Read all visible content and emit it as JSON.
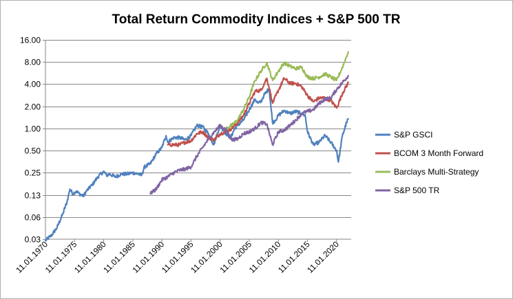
{
  "chart_data": {
    "type": "line",
    "title": "Total Return Commodity Indices + S&P 500 TR",
    "xlabel": "",
    "ylabel": "",
    "y_scale": "log2",
    "ylim": [
      0.03,
      16
    ],
    "xlim": [
      1970,
      2022.5
    ],
    "y_ticks": [
      {
        "value": 0.03125,
        "label": "0.03"
      },
      {
        "value": 0.0625,
        "label": "0.06"
      },
      {
        "value": 0.125,
        "label": "0.13"
      },
      {
        "value": 0.25,
        "label": "0.25"
      },
      {
        "value": 0.5,
        "label": "0.50"
      },
      {
        "value": 1,
        "label": "1.00"
      },
      {
        "value": 2,
        "label": "2.00"
      },
      {
        "value": 4,
        "label": "4.00"
      },
      {
        "value": 8,
        "label": "8.00"
      },
      {
        "value": 16,
        "label": "16.00"
      }
    ],
    "x_ticks": [
      {
        "value": 1970,
        "label": "11.01.1970"
      },
      {
        "value": 1975,
        "label": "11.01.1975"
      },
      {
        "value": 1980,
        "label": "11.01.1980"
      },
      {
        "value": 1985,
        "label": "11.01.1985"
      },
      {
        "value": 1990,
        "label": "11.01.1990"
      },
      {
        "value": 1995,
        "label": "11.01.1995"
      },
      {
        "value": 2000,
        "label": "11.01.2000"
      },
      {
        "value": 2005,
        "label": "11.01.2005"
      },
      {
        "value": 2010,
        "label": "11.01.2010"
      },
      {
        "value": 2015,
        "label": "11.01.2015"
      },
      {
        "value": 2020,
        "label": "11.01.2020"
      }
    ],
    "legend_position": "right",
    "series": [
      {
        "name": "S&P GSCI",
        "color": "#4f81bd",
        "points": [
          [
            1970,
            0.03
          ],
          [
            1971,
            0.035
          ],
          [
            1972,
            0.045
          ],
          [
            1973,
            0.07
          ],
          [
            1973.7,
            0.1
          ],
          [
            1974.2,
            0.15
          ],
          [
            1974.7,
            0.13
          ],
          [
            1975.3,
            0.14
          ],
          [
            1975.8,
            0.13
          ],
          [
            1976.5,
            0.12
          ],
          [
            1977,
            0.14
          ],
          [
            1978,
            0.17
          ],
          [
            1979,
            0.22
          ],
          [
            1980,
            0.26
          ],
          [
            1980.5,
            0.23
          ],
          [
            1981,
            0.24
          ],
          [
            1982,
            0.22
          ],
          [
            1983,
            0.24
          ],
          [
            1984,
            0.24
          ],
          [
            1985,
            0.25
          ],
          [
            1986,
            0.24
          ],
          [
            1986.5,
            0.23
          ],
          [
            1987,
            0.3
          ],
          [
            1988,
            0.33
          ],
          [
            1989,
            0.45
          ],
          [
            1990,
            0.55
          ],
          [
            1990.7,
            0.8
          ],
          [
            1991,
            0.65
          ],
          [
            1992,
            0.75
          ],
          [
            1993,
            0.75
          ],
          [
            1994,
            0.7
          ],
          [
            1995,
            0.8
          ],
          [
            1996,
            1.1
          ],
          [
            1997,
            1.05
          ],
          [
            1998,
            0.85
          ],
          [
            1998.9,
            0.6
          ],
          [
            1999.5,
            0.85
          ],
          [
            2000,
            1.1
          ],
          [
            2001,
            0.85
          ],
          [
            2001.8,
            0.75
          ],
          [
            2002.5,
            1.0
          ],
          [
            2003,
            1.1
          ],
          [
            2004,
            1.3
          ],
          [
            2005,
            1.8
          ],
          [
            2006,
            2.5
          ],
          [
            2006.5,
            2.2
          ],
          [
            2007,
            2.3
          ],
          [
            2007.5,
            2.8
          ],
          [
            2008.4,
            3.5
          ],
          [
            2009,
            1.2
          ],
          [
            2009.5,
            1.3
          ],
          [
            2010,
            1.5
          ],
          [
            2011,
            1.75
          ],
          [
            2012,
            1.6
          ],
          [
            2013,
            1.7
          ],
          [
            2014,
            1.6
          ],
          [
            2014.6,
            1.5
          ],
          [
            2015,
            0.9
          ],
          [
            2016,
            0.6
          ],
          [
            2017,
            0.65
          ],
          [
            2018,
            0.8
          ],
          [
            2019,
            0.65
          ],
          [
            2020,
            0.5
          ],
          [
            2020.3,
            0.35
          ],
          [
            2021,
            0.8
          ],
          [
            2021.7,
            1.2
          ],
          [
            2022,
            1.35
          ]
        ]
      },
      {
        "name": "BCOM 3 Month Forward",
        "color": "#c0504d",
        "points": [
          [
            1991,
            0.6
          ],
          [
            1992,
            0.6
          ],
          [
            1993,
            0.6
          ],
          [
            1994,
            0.65
          ],
          [
            1995,
            0.68
          ],
          [
            1996,
            0.85
          ],
          [
            1997,
            0.9
          ],
          [
            1998,
            0.75
          ],
          [
            1999,
            0.7
          ],
          [
            2000,
            0.85
          ],
          [
            2001,
            0.9
          ],
          [
            2002,
            1.0
          ],
          [
            2003,
            1.2
          ],
          [
            2004,
            1.5
          ],
          [
            2005,
            2.2
          ],
          [
            2006,
            3.2
          ],
          [
            2007,
            3.3
          ],
          [
            2008,
            4.8
          ],
          [
            2008.5,
            3.4
          ],
          [
            2009,
            2.2
          ],
          [
            2010,
            3.3
          ],
          [
            2011,
            4.8
          ],
          [
            2012,
            4.1
          ],
          [
            2013,
            4.1
          ],
          [
            2014,
            3.7
          ],
          [
            2015,
            2.8
          ],
          [
            2016,
            2.3
          ],
          [
            2017,
            2.6
          ],
          [
            2018,
            2.6
          ],
          [
            2019,
            2.4
          ],
          [
            2020,
            1.9
          ],
          [
            2021,
            3.0
          ],
          [
            2022,
            4.2
          ]
        ]
      },
      {
        "name": "Barclays Multi-Strategy",
        "color": "#9bbb59",
        "points": [
          [
            2001,
            1.0
          ],
          [
            2002,
            1.1
          ],
          [
            2003,
            1.3
          ],
          [
            2004,
            1.8
          ],
          [
            2005,
            2.7
          ],
          [
            2006,
            4.5
          ],
          [
            2007,
            6.0
          ],
          [
            2008,
            7.8
          ],
          [
            2008.5,
            6.0
          ],
          [
            2009,
            4.5
          ],
          [
            2010,
            6.0
          ],
          [
            2011,
            7.8
          ],
          [
            2012,
            7.0
          ],
          [
            2013,
            6.5
          ],
          [
            2014,
            6.8
          ],
          [
            2015,
            5.0
          ],
          [
            2016,
            4.8
          ],
          [
            2017,
            5.0
          ],
          [
            2018,
            5.5
          ],
          [
            2019,
            5.0
          ],
          [
            2020,
            4.5
          ],
          [
            2021,
            6.8
          ],
          [
            2022,
            11.0
          ]
        ]
      },
      {
        "name": "S&P 500 TR",
        "color": "#8064a2",
        "points": [
          [
            1988,
            0.13
          ],
          [
            1989,
            0.15
          ],
          [
            1990,
            0.2
          ],
          [
            1991,
            0.22
          ],
          [
            1992,
            0.25
          ],
          [
            1993,
            0.27
          ],
          [
            1994,
            0.28
          ],
          [
            1995,
            0.3
          ],
          [
            1996,
            0.42
          ],
          [
            1997,
            0.55
          ],
          [
            1998,
            0.72
          ],
          [
            1999,
            0.9
          ],
          [
            2000,
            1.1
          ],
          [
            2001,
            0.95
          ],
          [
            2002,
            0.7
          ],
          [
            2003,
            0.72
          ],
          [
            2004,
            0.85
          ],
          [
            2005,
            0.9
          ],
          [
            2006,
            1.0
          ],
          [
            2007,
            1.2
          ],
          [
            2008,
            1.15
          ],
          [
            2009,
            0.6
          ],
          [
            2010,
            0.9
          ],
          [
            2011,
            0.95
          ],
          [
            2012,
            1.1
          ],
          [
            2013,
            1.3
          ],
          [
            2014,
            1.6
          ],
          [
            2015,
            1.7
          ],
          [
            2016,
            1.8
          ],
          [
            2017,
            2.2
          ],
          [
            2018,
            2.5
          ],
          [
            2019,
            2.6
          ],
          [
            2020,
            3.4
          ],
          [
            2021,
            4.2
          ],
          [
            2022,
            5.2
          ]
        ]
      }
    ]
  }
}
